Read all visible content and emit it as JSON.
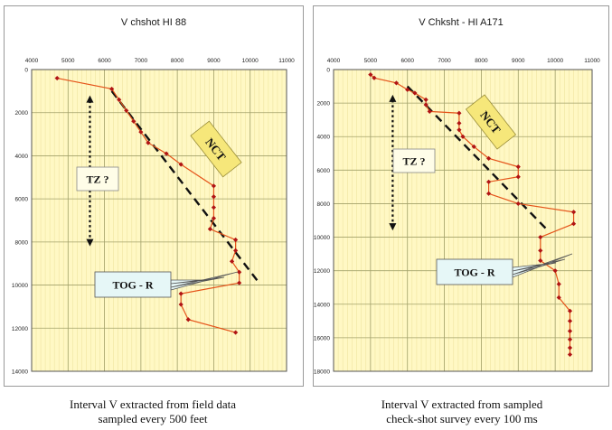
{
  "chart_data": [
    {
      "type": "line",
      "title": "V chshot HI 88",
      "xlim": [
        4000,
        11000
      ],
      "ylim": [
        0,
        14000
      ],
      "x_ticks": [
        4000,
        5000,
        6000,
        7000,
        8000,
        9000,
        10000,
        11000
      ],
      "y_ticks": [
        0,
        2000,
        4000,
        6000,
        8000,
        10000,
        12000,
        14000
      ],
      "x_tick_labels": [
        "4000",
        "5000",
        "6000",
        "7000",
        "8000",
        "9000",
        "10000",
        "11000"
      ],
      "y_tick_labels": [
        "0",
        "2000",
        "4000",
        "6000",
        "8000",
        "10000",
        "12000",
        "14000"
      ],
      "y_inverted": true,
      "grid": true,
      "series": [
        {
          "values": [
            [
              4700,
              400
            ],
            [
              6200,
              900
            ],
            [
              6400,
              1400
            ],
            [
              6600,
              1900
            ],
            [
              6800,
              2400
            ],
            [
              7000,
              2900
            ],
            [
              7200,
              3400
            ],
            [
              7700,
              3900
            ],
            [
              8100,
              4400
            ],
            [
              9000,
              5400
            ],
            [
              9000,
              5900
            ],
            [
              9000,
              6400
            ],
            [
              9000,
              6900
            ],
            [
              8900,
              7400
            ],
            [
              9600,
              7900
            ],
            [
              9600,
              8400
            ],
            [
              9500,
              8900
            ],
            [
              9700,
              9400
            ],
            [
              9700,
              9900
            ],
            [
              8100,
              10400
            ],
            [
              8100,
              10900
            ],
            [
              8300,
              11600
            ],
            [
              9600,
              12200
            ]
          ]
        }
      ],
      "trend_line": [
        [
          6200,
          1000
        ],
        [
          10200,
          9800
        ]
      ],
      "annotations": [
        {
          "text": "TZ ?",
          "arrow_x": 5600,
          "arrow_y": [
            1200,
            8200
          ]
        },
        {
          "text": "NCT"
        },
        {
          "text": "TOG - R"
        }
      ],
      "colors": {
        "background": "#fff8c4",
        "grid": "#a2a16a",
        "line": "#e5541a",
        "marker": "#b01414",
        "trend": "#111111"
      }
    },
    {
      "type": "line",
      "title": "V  Chksht - HI A171",
      "xlim": [
        4000,
        11000
      ],
      "ylim": [
        0,
        18000
      ],
      "x_ticks": [
        4000,
        5000,
        6000,
        7000,
        8000,
        9000,
        10000,
        11000
      ],
      "y_ticks": [
        0,
        2000,
        4000,
        6000,
        8000,
        10000,
        12000,
        14000,
        16000,
        18000
      ],
      "x_tick_labels": [
        "4000",
        "5000",
        "6000",
        "7000",
        "8000",
        "9000",
        "10000",
        "11000"
      ],
      "y_tick_labels": [
        "0",
        "2000",
        "4000",
        "6000",
        "8000",
        "10000",
        "12000",
        "14000",
        "16000",
        "18000"
      ],
      "y_inverted": true,
      "grid": true,
      "series": [
        {
          "values": [
            [
              5000,
              300
            ],
            [
              5100,
              500
            ],
            [
              5700,
              800
            ],
            [
              6000,
              1200
            ],
            [
              6200,
              1400
            ],
            [
              6500,
              1800
            ],
            [
              6500,
              2100
            ],
            [
              6600,
              2500
            ],
            [
              7400,
              2600
            ],
            [
              7400,
              3200
            ],
            [
              7400,
              3600
            ],
            [
              7500,
              4000
            ],
            [
              7800,
              4600
            ],
            [
              8200,
              5300
            ],
            [
              9000,
              5800
            ],
            [
              9000,
              6400
            ],
            [
              8200,
              6700
            ],
            [
              8200,
              7400
            ],
            [
              9000,
              8000
            ],
            [
              10500,
              8500
            ],
            [
              10500,
              9200
            ],
            [
              9600,
              10000
            ],
            [
              9600,
              10800
            ],
            [
              9600,
              11400
            ],
            [
              10000,
              12000
            ],
            [
              10100,
              12800
            ],
            [
              10100,
              13600
            ],
            [
              10400,
              14400
            ],
            [
              10400,
              15000
            ],
            [
              10400,
              15600
            ],
            [
              10400,
              16100
            ],
            [
              10400,
              16600
            ],
            [
              10400,
              17000
            ]
          ]
        }
      ],
      "trend_line": [
        [
          6000,
          1000
        ],
        [
          9800,
          9600
        ]
      ],
      "annotations": [
        {
          "text": "TZ ?",
          "arrow_x": 5600,
          "arrow_y": [
            1500,
            9600
          ]
        },
        {
          "text": "NCT"
        },
        {
          "text": "TOG - R"
        }
      ],
      "colors": {
        "background": "#fff8c4",
        "grid": "#a2a16a",
        "line": "#e5541a",
        "marker": "#b01414",
        "trend": "#111111"
      }
    }
  ],
  "captions": [
    {
      "line1": "Interval V extracted from field data",
      "line2": "sampled every 500 feet"
    },
    {
      "line1": "Interval V extracted from sampled",
      "line2": "check-shot survey every 100 ms"
    }
  ]
}
